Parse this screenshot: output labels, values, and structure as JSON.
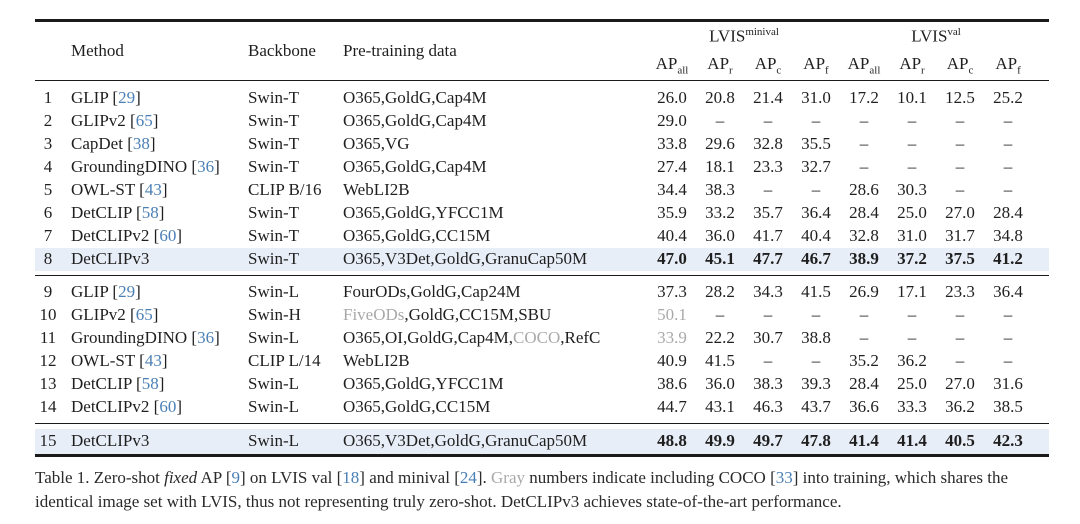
{
  "colors": {
    "citation": "#4a7fb5",
    "muted_gray": "#a9a9a9",
    "highlight_row": "#e8eef8",
    "rule": "#1b1b1b"
  },
  "table": {
    "headers": {
      "method": "Method",
      "backbone": "Backbone",
      "pretrain": "Pre-training data",
      "groups": [
        {
          "name": "LVIS",
          "sup": "minival"
        },
        {
          "name": "LVIS",
          "sup": "val"
        }
      ],
      "ap": [
        {
          "base": "AP",
          "sub": "all"
        },
        {
          "base": "AP",
          "sub": "r"
        },
        {
          "base": "AP",
          "sub": "c"
        },
        {
          "base": "AP",
          "sub": "f"
        }
      ]
    },
    "rows": [
      {
        "num": "1",
        "method": "GLIP",
        "cite": "29",
        "backbone": "Swin-T",
        "pretrain": [
          {
            "t": "O365,GoldG,Cap4M"
          }
        ],
        "values": [
          "26.0",
          "20.8",
          "21.4",
          "31.0",
          "17.2",
          "10.1",
          "12.5",
          "25.2"
        ],
        "gray_value_indices": [],
        "highlight": false,
        "bold_values": false,
        "section_start": false,
        "tall": false
      },
      {
        "num": "2",
        "method": "GLIPv2",
        "cite": "65",
        "backbone": "Swin-T",
        "pretrain": [
          {
            "t": "O365,GoldG,Cap4M"
          }
        ],
        "values": [
          "29.0",
          "–",
          "–",
          "–",
          "–",
          "–",
          "–",
          "–"
        ],
        "gray_value_indices": [],
        "highlight": false,
        "bold_values": false,
        "section_start": false,
        "tall": false
      },
      {
        "num": "3",
        "method": "CapDet",
        "cite": "38",
        "backbone": "Swin-T",
        "pretrain": [
          {
            "t": "O365,VG"
          }
        ],
        "values": [
          "33.8",
          "29.6",
          "32.8",
          "35.5",
          "–",
          "–",
          "–",
          "–"
        ],
        "gray_value_indices": [],
        "highlight": false,
        "bold_values": false,
        "section_start": false,
        "tall": false
      },
      {
        "num": "4",
        "method": "GroundingDINO",
        "cite": "36",
        "backbone": "Swin-T",
        "pretrain": [
          {
            "t": "O365,GoldG,Cap4M"
          }
        ],
        "values": [
          "27.4",
          "18.1",
          "23.3",
          "32.7",
          "–",
          "–",
          "–",
          "–"
        ],
        "gray_value_indices": [],
        "highlight": false,
        "bold_values": false,
        "section_start": false,
        "tall": false
      },
      {
        "num": "5",
        "method": "OWL-ST",
        "cite": "43",
        "backbone": "CLIP B/16",
        "pretrain": [
          {
            "t": "WebLI2B"
          }
        ],
        "values": [
          "34.4",
          "38.3",
          "–",
          "–",
          "28.6",
          "30.3",
          "–",
          "–"
        ],
        "gray_value_indices": [],
        "highlight": false,
        "bold_values": false,
        "section_start": false,
        "tall": false
      },
      {
        "num": "6",
        "method": "DetCLIP",
        "cite": "58",
        "backbone": "Swin-T",
        "pretrain": [
          {
            "t": "O365,GoldG,YFCC1M"
          }
        ],
        "values": [
          "35.9",
          "33.2",
          "35.7",
          "36.4",
          "28.4",
          "25.0",
          "27.0",
          "28.4"
        ],
        "gray_value_indices": [],
        "highlight": false,
        "bold_values": false,
        "section_start": false,
        "tall": false
      },
      {
        "num": "7",
        "method": "DetCLIPv2",
        "cite": "60",
        "backbone": "Swin-T",
        "pretrain": [
          {
            "t": "O365,GoldG,CC15M"
          }
        ],
        "values": [
          "40.4",
          "36.0",
          "41.7",
          "40.4",
          "32.8",
          "31.0",
          "31.7",
          "34.8"
        ],
        "gray_value_indices": [],
        "highlight": false,
        "bold_values": false,
        "section_start": false,
        "tall": false
      },
      {
        "num": "8",
        "method": "DetCLIPv3",
        "cite": null,
        "backbone": "Swin-T",
        "pretrain": [
          {
            "t": "O365,V3Det,GoldG,GranuCap50M"
          }
        ],
        "values": [
          "47.0",
          "45.1",
          "47.7",
          "46.7",
          "38.9",
          "37.2",
          "37.5",
          "41.2"
        ],
        "gray_value_indices": [],
        "highlight": true,
        "bold_values": true,
        "section_start": false,
        "tall": false
      },
      {
        "num": "9",
        "method": "GLIP",
        "cite": "29",
        "backbone": "Swin-L",
        "pretrain": [
          {
            "t": "FourODs,GoldG,Cap24M"
          }
        ],
        "values": [
          "37.3",
          "28.2",
          "34.3",
          "41.5",
          "26.9",
          "17.1",
          "23.3",
          "36.4"
        ],
        "gray_value_indices": [],
        "highlight": false,
        "bold_values": false,
        "section_start": true,
        "tall": false
      },
      {
        "num": "10",
        "method": "GLIPv2",
        "cite": "65",
        "backbone": "Swin-H",
        "pretrain": [
          {
            "t": "FiveODs",
            "gray": true
          },
          {
            "t": ",GoldG,CC15M,SBU"
          }
        ],
        "values": [
          "50.1",
          "–",
          "–",
          "–",
          "–",
          "–",
          "–",
          "–"
        ],
        "gray_value_indices": [
          0
        ],
        "highlight": false,
        "bold_values": false,
        "section_start": false,
        "tall": false
      },
      {
        "num": "11",
        "method": "GroundingDINO",
        "cite": "36",
        "backbone": "Swin-L",
        "pretrain": [
          {
            "t": "O365,OI,GoldG,Cap4M,"
          },
          {
            "t": "COCO",
            "gray": true
          },
          {
            "t": ",RefC"
          }
        ],
        "values": [
          "33.9",
          "22.2",
          "30.7",
          "38.8",
          "–",
          "–",
          "–",
          "–"
        ],
        "gray_value_indices": [
          0
        ],
        "highlight": false,
        "bold_values": false,
        "section_start": false,
        "tall": false
      },
      {
        "num": "12",
        "method": "OWL-ST",
        "cite": "43",
        "backbone": "CLIP L/14",
        "pretrain": [
          {
            "t": "WebLI2B"
          }
        ],
        "values": [
          "40.9",
          "41.5",
          "–",
          "–",
          "35.2",
          "36.2",
          "–",
          "–"
        ],
        "gray_value_indices": [],
        "highlight": false,
        "bold_values": false,
        "section_start": false,
        "tall": false
      },
      {
        "num": "13",
        "method": "DetCLIP",
        "cite": "58",
        "backbone": "Swin-L",
        "pretrain": [
          {
            "t": "O365,GoldG,YFCC1M"
          }
        ],
        "values": [
          "38.6",
          "36.0",
          "38.3",
          "39.3",
          "28.4",
          "25.0",
          "27.0",
          "31.6"
        ],
        "gray_value_indices": [],
        "highlight": false,
        "bold_values": false,
        "section_start": false,
        "tall": false
      },
      {
        "num": "14",
        "method": "DetCLIPv2",
        "cite": "60",
        "backbone": "Swin-L",
        "pretrain": [
          {
            "t": "O365,GoldG,CC15M"
          }
        ],
        "values": [
          "44.7",
          "43.1",
          "46.3",
          "43.7",
          "36.6",
          "33.3",
          "36.2",
          "38.5"
        ],
        "gray_value_indices": [],
        "highlight": false,
        "bold_values": false,
        "section_start": false,
        "tall": false
      },
      {
        "num": "15",
        "method": "DetCLIPv3",
        "cite": null,
        "backbone": "Swin-L",
        "pretrain": [
          {
            "t": "O365,V3Det,GoldG,GranuCap50M"
          }
        ],
        "values": [
          "48.8",
          "49.9",
          "49.7",
          "47.8",
          "41.4",
          "41.4",
          "40.5",
          "42.3"
        ],
        "gray_value_indices": [],
        "highlight": true,
        "bold_values": true,
        "section_start": true,
        "tall": true
      }
    ]
  },
  "caption": {
    "segments": [
      {
        "t": "Table 1. Zero-shot "
      },
      {
        "t": "fixed",
        "style": "italic"
      },
      {
        "t": " AP ["
      },
      {
        "t": "9",
        "style": "cite"
      },
      {
        "t": "] on LVIS val ["
      },
      {
        "t": "18",
        "style": "cite"
      },
      {
        "t": "] and minival ["
      },
      {
        "t": "24",
        "style": "cite"
      },
      {
        "t": "]. "
      },
      {
        "t": "Gray",
        "style": "gray"
      },
      {
        "t": " numbers indicate including COCO ["
      },
      {
        "t": "33",
        "style": "cite"
      },
      {
        "t": "] into training, which shares the identical image set with LVIS, thus not representing truly zero-shot. DetCLIPv3 achieves state-of-the-art performance."
      }
    ]
  }
}
